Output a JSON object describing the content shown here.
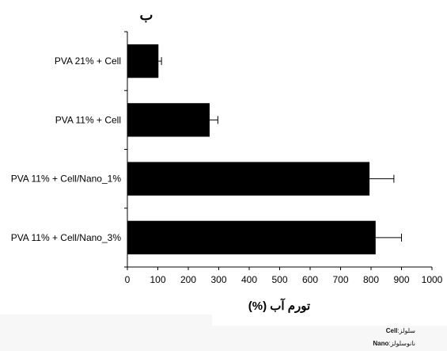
{
  "chart_data": {
    "type": "bar",
    "orientation": "horizontal",
    "title": "ب",
    "categories": [
      "PVA 21% + Cell",
      "PVA 11% + Cell",
      "PVA 11% + Cell/Nano_1%",
      "PVA 11% + Cell/Nano_3%"
    ],
    "values": [
      102,
      270,
      795,
      815
    ],
    "errors": [
      10,
      27,
      80,
      85
    ],
    "xlabel": "تورم آب (%)",
    "ylabel": "",
    "xlim": [
      0,
      1000
    ],
    "xticks": [
      0,
      100,
      200,
      300,
      400,
      500,
      600,
      700,
      800,
      900,
      1000
    ],
    "grid": false,
    "bar_color": "#000000"
  },
  "legend_notes": [
    {
      "abbr": "Cell",
      "text": "سلولز"
    },
    {
      "abbr": "Nano",
      "text": "نانوسلولز"
    }
  ]
}
